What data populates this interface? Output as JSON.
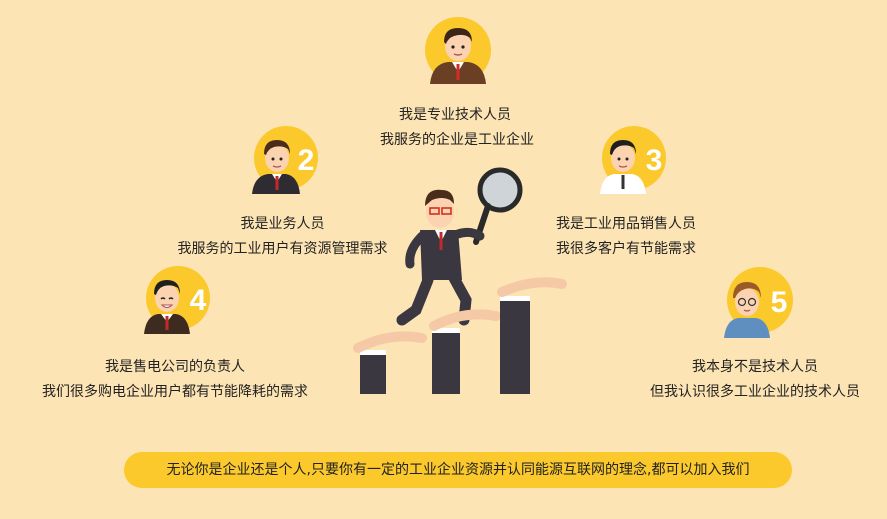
{
  "personas": [
    {
      "number": "",
      "line1": "我是专业技术人员",
      "line2": "我服务的企业是工业企业"
    },
    {
      "number": "2",
      "line1": "我是业务人员",
      "line2": "我服务的工业用户有资源管理需求"
    },
    {
      "number": "3",
      "line1": "我是工业用品销售人员",
      "line2": "我很多客户有节能需求"
    },
    {
      "number": "4",
      "line1": "我是售电公司的负责人",
      "line2": "我们很多购电企业用户都有节能降耗的需求"
    },
    {
      "number": "5",
      "line1": "我本身不是技术人员",
      "line2": "但我认识很多工业企业的技术人员"
    }
  ],
  "banner": {
    "text": "无论你是企业还是个人,只要你有一定的工业企业资源并认同能源互联网的理念,都可以加入我们"
  },
  "colors": {
    "background": "#fde4b4",
    "circle": "#fbc92c",
    "banner": "#fbc92c",
    "text": "#222222"
  },
  "icons": [
    "person-avatar-icon",
    "magnifier-icon",
    "hand-steps-icon"
  ]
}
